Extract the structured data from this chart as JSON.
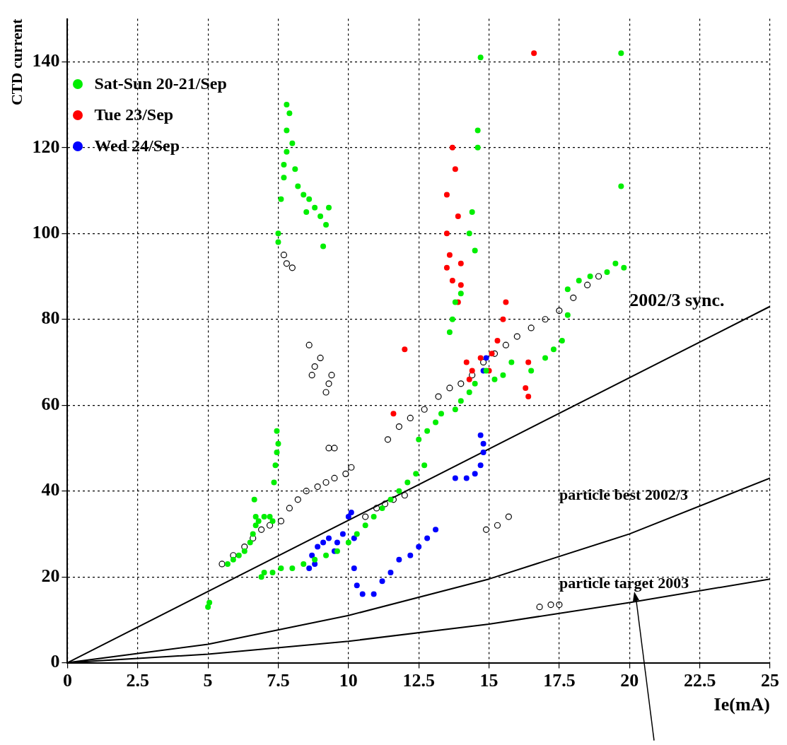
{
  "chart_data": {
    "type": "scatter",
    "xlabel": "Ie(mA)",
    "ylabel": "CTD current",
    "xlim": [
      0,
      25
    ],
    "xticks": [
      0,
      2.5,
      5,
      7.5,
      10,
      12.5,
      15,
      17.5,
      20,
      22.5,
      25
    ],
    "ylim": [
      0,
      150
    ],
    "yticks": [
      0,
      20,
      40,
      60,
      80,
      100,
      120,
      140
    ],
    "grid": true,
    "legend": "top left",
    "marker": "circle",
    "series": [
      {
        "name": "Sat-Sun 20-21/Sep",
        "color": "#00ee00",
        "x": [
          5.0,
          5.05,
          5.7,
          5.9,
          6.1,
          6.3,
          6.5,
          6.6,
          6.7,
          6.7,
          6.8,
          7.0,
          7.2,
          7.3,
          6.65,
          7.35,
          7.4,
          7.45,
          7.5,
          7.45,
          6.9,
          7.0,
          7.3,
          7.6,
          8.0,
          8.4,
          8.8,
          9.2,
          9.6,
          10.0,
          10.3,
          10.6,
          10.9,
          11.2,
          11.5,
          11.8,
          12.1,
          12.4,
          12.7,
          12.5,
          12.8,
          13.1,
          13.3,
          7.5,
          7.5,
          7.6,
          7.7,
          7.7,
          7.8,
          7.8,
          7.9,
          7.8,
          8.0,
          8.1,
          8.2,
          8.4,
          8.6,
          8.8,
          9.0,
          9.2,
          9.1,
          9.3,
          8.5,
          13.8,
          14.0,
          14.3,
          14.5,
          13.6,
          13.7,
          13.8,
          14.0,
          14.3,
          14.4,
          14.5,
          14.6,
          14.6,
          14.7,
          19.7,
          19.7,
          15.2,
          15.5,
          15.8,
          16.5,
          17.0,
          17.3,
          17.6,
          17.8,
          17.8,
          18.2,
          18.6,
          19.2,
          19.5,
          19.8,
          14.9
        ],
        "values": [
          13,
          14,
          23,
          24,
          25,
          26,
          28,
          30,
          32,
          34,
          33,
          34,
          34,
          33,
          38,
          42,
          46,
          49,
          51,
          54,
          20,
          21,
          21,
          22,
          22,
          23,
          24,
          25,
          26,
          28,
          30,
          32,
          34,
          36,
          38,
          40,
          42,
          44,
          46,
          52,
          54,
          56,
          58,
          98,
          100,
          108,
          113,
          116,
          119,
          124,
          128,
          130,
          121,
          115,
          111,
          109,
          108,
          106,
          104,
          102,
          97,
          106,
          105,
          59,
          61,
          63,
          65,
          77,
          80,
          84,
          86,
          100,
          105,
          96,
          120,
          124,
          141,
          142,
          111,
          66,
          67,
          70,
          68,
          71,
          73,
          75,
          81,
          87,
          89,
          90,
          91,
          93,
          92,
          68
        ]
      },
      {
        "name": "Tue 23/Sep",
        "color": "#ff0000",
        "x": [
          11.6,
          12.0,
          13.5,
          13.5,
          13.6,
          13.7,
          13.8,
          13.9,
          13.5,
          13.7,
          14.0,
          14.0,
          13.9,
          14.2,
          14.4,
          14.3,
          14.7,
          15.1,
          15.3,
          15.5,
          15.6,
          15.0,
          16.4,
          16.3,
          16.4,
          16.6
        ],
        "values": [
          58,
          73,
          109,
          100,
          95,
          120,
          115,
          104,
          92,
          89,
          93,
          88,
          84,
          70,
          68,
          66,
          71,
          72,
          75,
          80,
          84,
          68,
          70,
          64,
          62,
          142
        ]
      },
      {
        "name": "Wed 24/Sep",
        "color": "#0000ff",
        "x": [
          8.6,
          8.7,
          8.9,
          9.1,
          9.3,
          9.6,
          9.8,
          10.0,
          10.1,
          9.5,
          8.8,
          10.2,
          10.2,
          10.3,
          10.5,
          10.9,
          11.2,
          11.5,
          11.8,
          12.2,
          12.5,
          12.8,
          13.1,
          13.8,
          14.2,
          14.5,
          14.7,
          14.8,
          14.8,
          14.7,
          14.8,
          14.9
        ],
        "values": [
          22,
          25,
          27,
          28,
          29,
          28,
          30,
          34,
          35,
          26,
          23,
          22,
          29,
          18,
          16,
          16,
          19,
          21,
          24,
          25,
          27,
          29,
          31,
          43,
          43,
          44,
          46,
          49,
          51,
          53,
          68,
          71
        ]
      },
      {
        "color": "#000000",
        "x": [
          5.5,
          5.9,
          6.3,
          6.6,
          6.9,
          7.2,
          7.6,
          7.9,
          8.2,
          8.5,
          8.9,
          9.2,
          9.5,
          9.9,
          10.1,
          9.3,
          9.5,
          7.7,
          7.8,
          8.0,
          8.6,
          8.7,
          8.8,
          9.0,
          9.2,
          9.3,
          9.4,
          10.6,
          11.0,
          11.3,
          11.6,
          12.0,
          11.4,
          11.8,
          12.2,
          12.7,
          13.2,
          13.6,
          14.0,
          14.4,
          14.8,
          15.2,
          15.6,
          16.0,
          16.5,
          17.0,
          17.5,
          18.0,
          18.5,
          18.9,
          14.9,
          15.3,
          15.7,
          16.8,
          17.2,
          17.5
        ],
        "values": [
          23,
          25,
          27,
          29,
          31,
          32,
          33,
          36,
          38,
          40,
          41,
          42,
          43,
          44,
          45.5,
          50,
          50,
          95,
          93,
          92,
          74,
          67,
          69,
          71,
          63,
          65,
          67,
          34,
          36,
          37,
          38,
          39,
          52,
          55,
          57,
          59,
          62,
          64,
          65,
          67,
          70,
          72,
          74,
          76,
          78,
          80,
          82,
          85,
          88,
          90,
          31,
          32,
          34,
          13,
          13.5,
          13.5
        ]
      },
      {
        "type": "line",
        "color": "#000000",
        "marker": "none",
        "x": [
          0,
          25
        ],
        "values": [
          0,
          83
        ]
      },
      {
        "type": "line",
        "color": "#000000",
        "marker": "none",
        "x": [
          0,
          5,
          10,
          15,
          20,
          25
        ],
        "values": [
          0,
          4.3,
          11,
          19.5,
          30,
          43
        ]
      },
      {
        "type": "line",
        "color": "#000000",
        "marker": "none",
        "x": [
          0,
          5,
          10,
          15,
          20,
          25
        ],
        "values": [
          0,
          2,
          5,
          9,
          14,
          19.5
        ]
      }
    ],
    "annotations": [
      "2002/3 sync.",
      "particle best 2002/3",
      "particle target 2003"
    ]
  }
}
